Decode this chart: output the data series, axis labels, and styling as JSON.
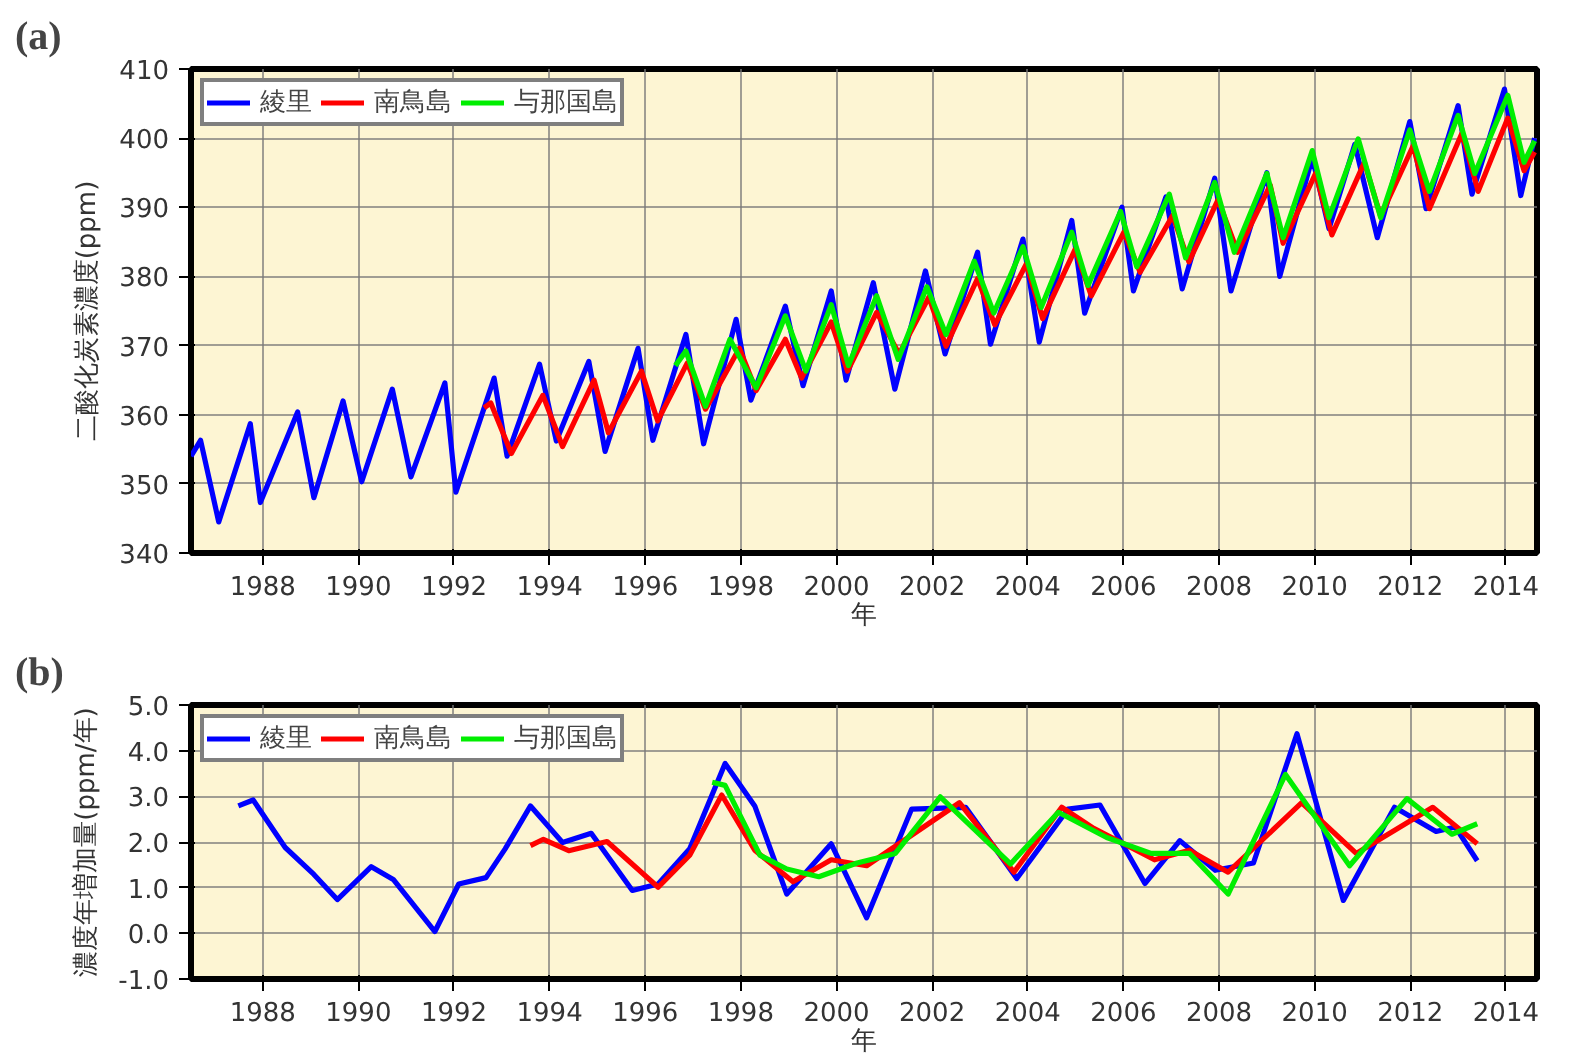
{
  "chart_data": [
    {
      "type": "line",
      "title": "(a)",
      "xlabel": "年",
      "ylabel": "二酸化炭素濃度(ppm)",
      "xlim": [
        1986.5,
        2014.65
      ],
      "ylim": [
        340,
        410
      ],
      "xticks": [
        1988,
        1990,
        1992,
        1994,
        1996,
        1998,
        2000,
        2002,
        2004,
        2006,
        2008,
        2010,
        2012,
        2014
      ],
      "yticks": [
        340,
        350,
        360,
        370,
        380,
        390,
        400,
        410
      ],
      "grid": true,
      "legend": "top left",
      "series": [
        {
          "name": "綾里",
          "color": "#0000ff",
          "x": [
            1986.5,
            1986.7,
            1987.08,
            1987.74,
            1987.95,
            1988.73,
            1989.07,
            1989.68,
            1990.07,
            1990.71,
            1991.1,
            1991.81,
            1992.04,
            1992.84,
            1993.11,
            1993.79,
            1994.14,
            1994.82,
            1995.16,
            1995.85,
            1996.16,
            1996.85,
            1997.22,
            1997.9,
            1998.21,
            1998.93,
            1999.3,
            1999.89,
            2000.2,
            2000.77,
            2001.22,
            2001.86,
            2002.27,
            2002.95,
            2003.22,
            2003.9,
            2004.24,
            2004.92,
            2005.19,
            2005.97,
            2006.21,
            2006.89,
            2007.23,
            2007.91,
            2008.25,
            2009.0,
            2009.27,
            2009.95,
            2010.3,
            2010.84,
            2011.31,
            2011.99,
            2012.33,
            2013.0,
            2013.29,
            2013.97,
            2014.31,
            2014.6
          ],
          "values": [
            354,
            356.3,
            344.5,
            358.7,
            347.3,
            360.4,
            348,
            362,
            350.3,
            363.7,
            351,
            364.6,
            348.8,
            365.3,
            354,
            367.3,
            356.2,
            367.7,
            354.7,
            369.6,
            356.3,
            371.6,
            355.8,
            373.8,
            362.1,
            375.7,
            364.2,
            377.9,
            365,
            379.1,
            363.7,
            380.8,
            368.8,
            383.5,
            370.2,
            385.4,
            370.5,
            388.1,
            374.7,
            390,
            377.9,
            391.5,
            378.2,
            394.2,
            377.9,
            395,
            380,
            397.2,
            386.9,
            399.1,
            385.6,
            402.4,
            389.8,
            404.7,
            391.9,
            407.1,
            391.7,
            400
          ]
        },
        {
          "name": "南鳥島",
          "color": "#ff0000",
          "x": [
            1992.63,
            1992.77,
            1993.2,
            1993.86,
            1994.27,
            1994.93,
            1995.23,
            1995.92,
            1996.26,
            1996.88,
            1997.26,
            1997.97,
            1998.32,
            1998.93,
            1999.27,
            1999.89,
            2000.23,
            2000.84,
            2001.31,
            2001.93,
            2002.29,
            2002.95,
            2003.31,
            2003.97,
            2004.31,
            2004.99,
            2005.33,
            2006.01,
            2006.35,
            2007.03,
            2007.37,
            2007.98,
            2008.39,
            2009.07,
            2009.34,
            2010.02,
            2010.36,
            2011.04,
            2011.38,
            2012.06,
            2012.4,
            2013.08,
            2013.42,
            2014.04,
            2014.38,
            2014.6
          ],
          "values": [
            361,
            361.7,
            354.4,
            362.8,
            355.4,
            365,
            357.4,
            366.3,
            359.1,
            367.5,
            360.8,
            369.6,
            363.5,
            370.9,
            365.3,
            373.4,
            366.3,
            374.8,
            368.8,
            377,
            369.9,
            379.7,
            373,
            381.8,
            373.9,
            383.9,
            377.2,
            386.4,
            380.6,
            388.8,
            382.1,
            391.1,
            383.5,
            393.2,
            384.8,
            394.9,
            386,
            396.5,
            388.7,
            398.9,
            389.8,
            400.7,
            392.3,
            402.9,
            395.3,
            398
          ]
        },
        {
          "name": "与那国島",
          "color": "#00ee00",
          "x": [
            1996.63,
            1996.85,
            1997.26,
            1997.77,
            1998.32,
            1998.93,
            1999.36,
            1999.89,
            2000.25,
            2000.84,
            2001.29,
            2001.89,
            2002.29,
            2002.88,
            2003.29,
            2003.9,
            2004.28,
            2004.92,
            2005.26,
            2005.94,
            2006.28,
            2006.96,
            2007.3,
            2007.91,
            2008.32,
            2009.0,
            2009.34,
            2009.95,
            2010.3,
            2010.91,
            2011.38,
            2011.99,
            2012.4,
            2013.0,
            2013.35,
            2014.04,
            2014.38,
            2014.6
          ],
          "values": [
            367.1,
            369.2,
            361.2,
            370.9,
            363.9,
            374.3,
            366.3,
            375.9,
            367.1,
            377.2,
            368,
            378.5,
            371.6,
            382.2,
            374.7,
            384.3,
            375.5,
            386.4,
            378.7,
            389.4,
            381.4,
            391.9,
            382.7,
            393.6,
            383.5,
            394.9,
            385.6,
            398.2,
            388.5,
            399.9,
            388.5,
            401.2,
            392.3,
            403.3,
            394.9,
            406.2,
            396.5,
            399.6
          ]
        }
      ]
    },
    {
      "type": "line",
      "title": "(b)",
      "xlabel": "年",
      "ylabel": "濃度年増加量(ppm/年)",
      "xlim": [
        1986.5,
        2014.65
      ],
      "ylim": [
        -1,
        5
      ],
      "xticks": [
        1988,
        1990,
        1992,
        1994,
        1996,
        1998,
        2000,
        2002,
        2004,
        2006,
        2008,
        2010,
        2012,
        2014
      ],
      "yticks": [
        {
          "value": -1,
          "label": "-1.0"
        },
        {
          "value": 0,
          "label": "0.0"
        },
        {
          "value": 1,
          "label": "1.0"
        },
        {
          "value": 2,
          "label": "2.0"
        },
        {
          "value": 3,
          "label": "3.0"
        },
        {
          "value": 4,
          "label": "4.0"
        },
        {
          "value": 5,
          "label": "5.0"
        }
      ],
      "grid": true,
      "legend": "top left",
      "series": [
        {
          "name": "綾里",
          "color": "#0000ff",
          "x": [
            1987.49,
            1987.8,
            1988.47,
            1989.07,
            1989.56,
            1990.27,
            1990.73,
            1991.6,
            1992.1,
            1992.67,
            1993.07,
            1993.6,
            1994.27,
            1994.87,
            1995.73,
            1996.27,
            1996.93,
            1997.67,
            1998.29,
            1998.96,
            1999.89,
            2000.63,
            2001.57,
            2002.7,
            2003.77,
            2004.84,
            2005.51,
            2006.45,
            2007.18,
            2007.92,
            2008.72,
            2009.63,
            2010.6,
            2011.67,
            2012.54,
            2012.94,
            2013.4
          ],
          "values": [
            2.79,
            2.92,
            1.88,
            1.29,
            0.74,
            1.46,
            1.18,
            0.04,
            1.08,
            1.22,
            1.85,
            2.79,
            1.99,
            2.19,
            0.94,
            1.08,
            1.85,
            3.72,
            2.79,
            0.86,
            1.96,
            0.34,
            2.72,
            2.76,
            1.2,
            2.72,
            2.81,
            1.09,
            2.03,
            1.38,
            1.54,
            4.37,
            0.72,
            2.76,
            2.23,
            2.33,
            1.59
          ]
        },
        {
          "name": "南鳥島",
          "color": "#ff0000",
          "x": [
            1993.6,
            1993.87,
            1994.4,
            1995.2,
            1996.27,
            1996.93,
            1997.6,
            1998.29,
            1999.09,
            1999.89,
            2000.63,
            2002.57,
            2003.71,
            2004.71,
            2005.38,
            2006.65,
            2007.38,
            2008.19,
            2009.73,
            2010.87,
            2012.47,
            2013.4
          ],
          "values": [
            1.92,
            2.06,
            1.81,
            2.01,
            1.01,
            1.71,
            3.03,
            1.82,
            1.13,
            1.61,
            1.48,
            2.86,
            1.34,
            2.76,
            2.3,
            1.61,
            1.82,
            1.34,
            2.86,
            1.75,
            2.76,
            1.96
          ]
        },
        {
          "name": "与那国島",
          "color": "#00ee00",
          "x": [
            1997.4,
            1997.67,
            1998.4,
            1998.96,
            1999.63,
            2000.43,
            2001.23,
            2002.17,
            2003.64,
            2004.64,
            2005.65,
            2006.58,
            2007.38,
            2008.19,
            2009.39,
            2010.73,
            2011.93,
            2012.87,
            2013.4
          ],
          "values": [
            3.31,
            3.24,
            1.71,
            1.41,
            1.24,
            1.54,
            1.75,
            2.99,
            1.52,
            2.65,
            2.1,
            1.75,
            1.75,
            0.86,
            3.48,
            1.48,
            2.95,
            2.17,
            2.4
          ]
        }
      ]
    }
  ]
}
